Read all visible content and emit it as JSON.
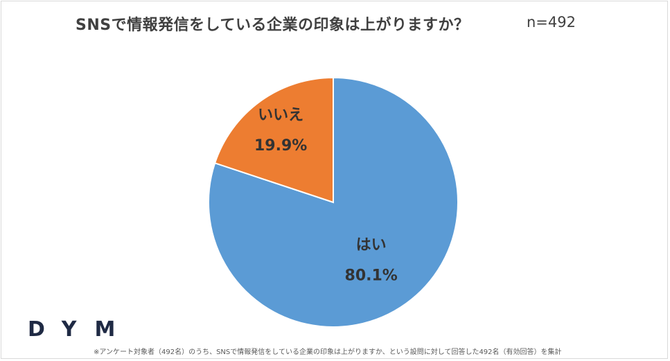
{
  "title": "SNSで情報発信をしている企業の印象は上がりますか？",
  "sample_size": "n=492",
  "chart_data": {
    "type": "pie",
    "title": "SNSで情報発信をしている企業の印象は上がりますか？",
    "slices": [
      {
        "label": "はい",
        "value": 80.1,
        "display": "80.1%",
        "color": "#5b9bd5"
      },
      {
        "label": "いいえ",
        "value": 19.9,
        "display": "19.9%",
        "color": "#ed7d31"
      }
    ],
    "start": "12 o'clock",
    "direction": "clockwise"
  },
  "logo": "DYM",
  "footnote": "※アンケート対象者（492名）のうち、SNSで情報発信をしている企業の印象は上がりますか、という設問に対して回答した492名（有効回答）を集計"
}
